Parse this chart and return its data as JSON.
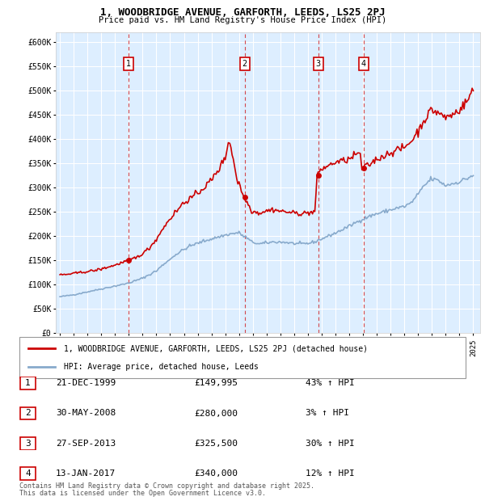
{
  "title": "1, WOODBRIDGE AVENUE, GARFORTH, LEEDS, LS25 2PJ",
  "subtitle": "Price paid vs. HM Land Registry's House Price Index (HPI)",
  "ylim": [
    0,
    620000
  ],
  "yticks": [
    0,
    50000,
    100000,
    150000,
    200000,
    250000,
    300000,
    350000,
    400000,
    450000,
    500000,
    550000,
    600000
  ],
  "sale_prices": [
    149995,
    280000,
    325500,
    340000
  ],
  "sale_labels": [
    "1",
    "2",
    "3",
    "4"
  ],
  "sale_pct": [
    "43% ↑ HPI",
    "3% ↑ HPI",
    "30% ↑ HPI",
    "12% ↑ HPI"
  ],
  "sale_dates_str": [
    "21-DEC-1999",
    "30-MAY-2008",
    "27-SEP-2013",
    "13-JAN-2017"
  ],
  "sale_year_floats": [
    2000.0,
    2008.42,
    2013.75,
    2017.04
  ],
  "legend_label_red": "1, WOODBRIDGE AVENUE, GARFORTH, LEEDS, LS25 2PJ (detached house)",
  "legend_label_blue": "HPI: Average price, detached house, Leeds",
  "footer1": "Contains HM Land Registry data © Crown copyright and database right 2025.",
  "footer2": "This data is licensed under the Open Government Licence v3.0.",
  "red_color": "#cc0000",
  "blue_color": "#88aacc",
  "bg_color": "#ddeeff",
  "grid_color": "#ffffff",
  "vline_color": "#cc0000",
  "box_color": "#cc0000",
  "xlim_left": 1994.7,
  "xlim_right": 2025.5
}
